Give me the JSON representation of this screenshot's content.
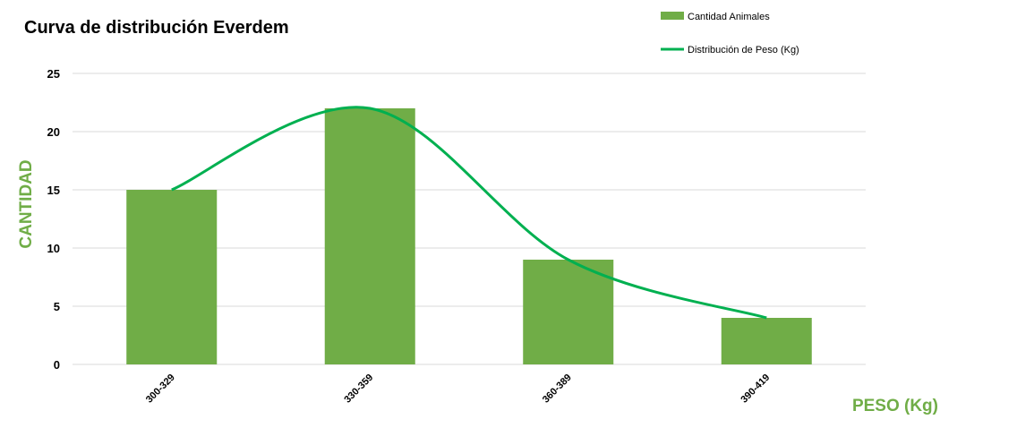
{
  "chart_data": {
    "type": "bar",
    "title": "Curva de distribución Everdem",
    "xlabel": "PESO (Kg)",
    "ylabel": "CANTIDAD",
    "categories": [
      "300-329",
      "330-359",
      "360-389",
      "390-419"
    ],
    "series": [
      {
        "name": "Cantidad Animales",
        "type": "bar",
        "values": [
          15,
          22,
          9,
          4
        ],
        "color": "#70ad47"
      },
      {
        "name": "Distribución de Peso (Kg)",
        "type": "line",
        "smooth": true,
        "values": [
          15,
          22,
          9,
          4
        ],
        "color": "#00b050"
      }
    ],
    "ylim": [
      0,
      25
    ],
    "yticks": [
      0,
      5,
      10,
      15,
      20,
      25
    ],
    "grid": true,
    "legend_position": "top-right",
    "axis_title_color": "#70ad47"
  }
}
